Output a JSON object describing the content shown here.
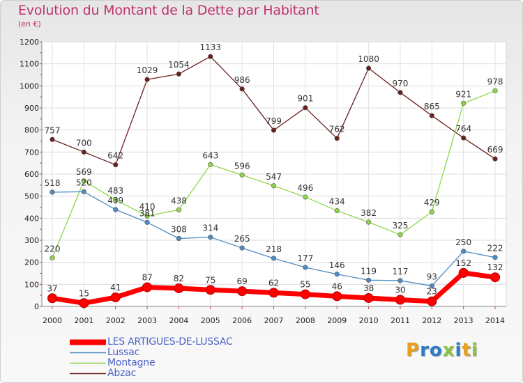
{
  "title": "Evolution du Montant de la Dette par Habitant",
  "subtitle": "(en €)",
  "logo": {
    "letters": [
      {
        "ch": "P",
        "color": "#e8a01c"
      },
      {
        "ch": "r",
        "color": "#2e7cc8"
      },
      {
        "ch": "o",
        "color": "#2e7cc8"
      },
      {
        "ch": "x",
        "color": "#8bc540"
      },
      {
        "ch": "i",
        "color": "#2e7cc8"
      },
      {
        "ch": "t",
        "color": "#e8a01c"
      },
      {
        "ch": "i",
        "color": "#8bc540"
      }
    ]
  },
  "chart_data": {
    "type": "line",
    "x": [
      "2000",
      "2001",
      "2002",
      "2003",
      "2004",
      "2005",
      "2006",
      "2007",
      "2008",
      "2009",
      "2010",
      "2011",
      "2012",
      "2013",
      "2014"
    ],
    "ylim": [
      0,
      1200
    ],
    "yticks": [
      0,
      100,
      200,
      300,
      400,
      500,
      600,
      700,
      800,
      900,
      1000,
      1100,
      1200
    ],
    "grid": true,
    "legend_position": "bottom-left",
    "series": [
      {
        "name": "LES ARTIGUES-DE-LUSSAC",
        "color": "#ff0000",
        "values": [
          37,
          15,
          41,
          87,
          82,
          75,
          69,
          62,
          55,
          46,
          38,
          30,
          23,
          152,
          132
        ]
      },
      {
        "name": "Lussac",
        "color": "#4f8bc2",
        "values": [
          518,
          520,
          439,
          381,
          308,
          314,
          265,
          218,
          177,
          146,
          119,
          117,
          93,
          250,
          222
        ]
      },
      {
        "name": "Montagne",
        "color": "#8ed64a",
        "values": [
          220,
          569,
          483,
          410,
          438,
          643,
          596,
          547,
          496,
          434,
          382,
          325,
          429,
          921,
          978
        ]
      },
      {
        "name": "Abzac",
        "color": "#6b1e1e",
        "values": [
          757,
          700,
          642,
          1029,
          1054,
          1133,
          986,
          799,
          901,
          762,
          1080,
          970,
          865,
          764,
          669
        ]
      }
    ]
  }
}
